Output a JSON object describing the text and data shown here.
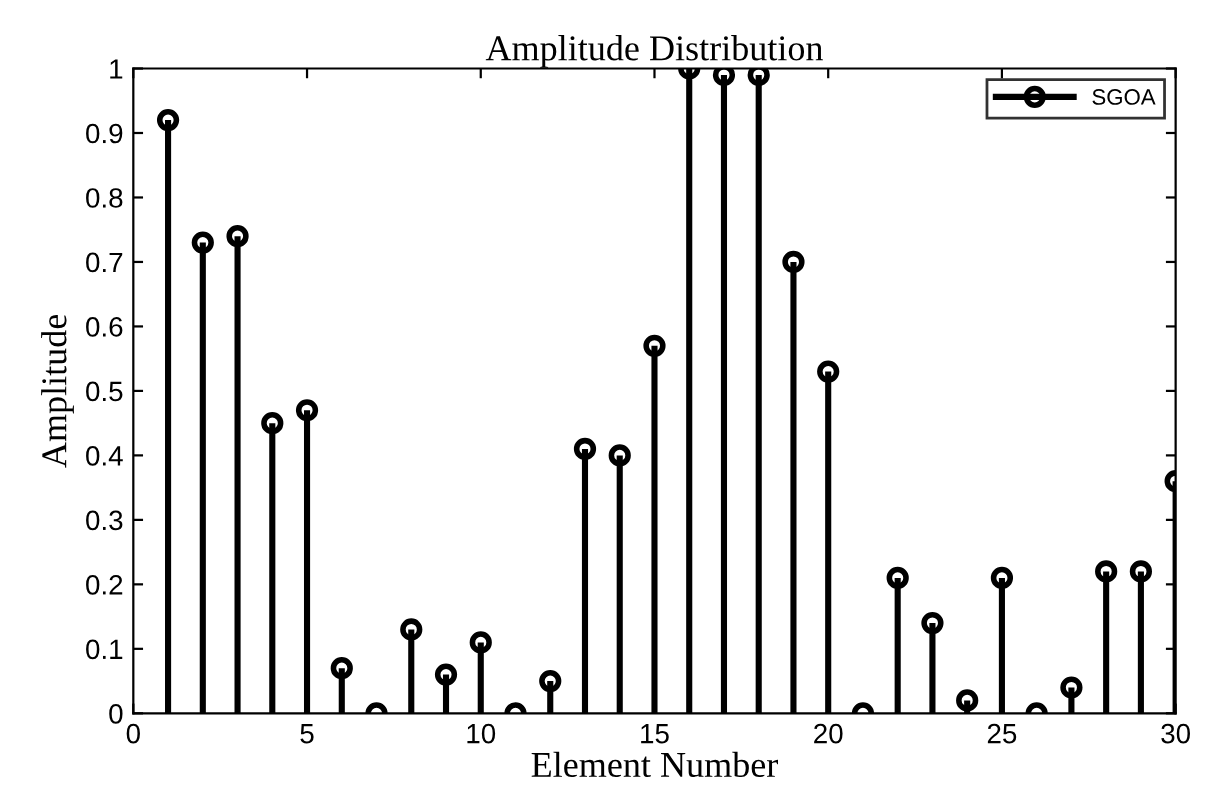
{
  "chart_data": {
    "type": "lollipop",
    "title": "Amplitude Distribution",
    "xlabel": "Element Number",
    "ylabel": "Amplitude",
    "x": [
      1,
      2,
      3,
      4,
      5,
      6,
      7,
      8,
      9,
      10,
      11,
      12,
      13,
      14,
      15,
      16,
      17,
      18,
      19,
      20,
      21,
      22,
      23,
      24,
      25,
      26,
      27,
      28,
      29,
      30
    ],
    "series": [
      {
        "name": "SGOA",
        "color": "#000000",
        "values": [
          0.92,
          0.73,
          0.74,
          0.45,
          0.47,
          0.07,
          0,
          0.13,
          0.06,
          0.11,
          0,
          0.05,
          0.41,
          0.4,
          0.57,
          1.0,
          0.99,
          0.99,
          0.7,
          0.53,
          0,
          0.21,
          0.14,
          0.02,
          0.21,
          0,
          0.04,
          0.22,
          0.22,
          0.36
        ]
      }
    ],
    "xlim": [
      0,
      30
    ],
    "xticks": [
      0,
      5,
      10,
      15,
      20,
      25,
      30
    ],
    "ylim": [
      0,
      1
    ],
    "yticks": [
      0,
      0.1,
      0.2,
      0.3,
      0.4,
      0.5,
      0.6,
      0.7,
      0.8,
      0.9,
      1
    ],
    "grid": false,
    "legend": "top right",
    "marker": "circle",
    "line_style": "solid"
  }
}
